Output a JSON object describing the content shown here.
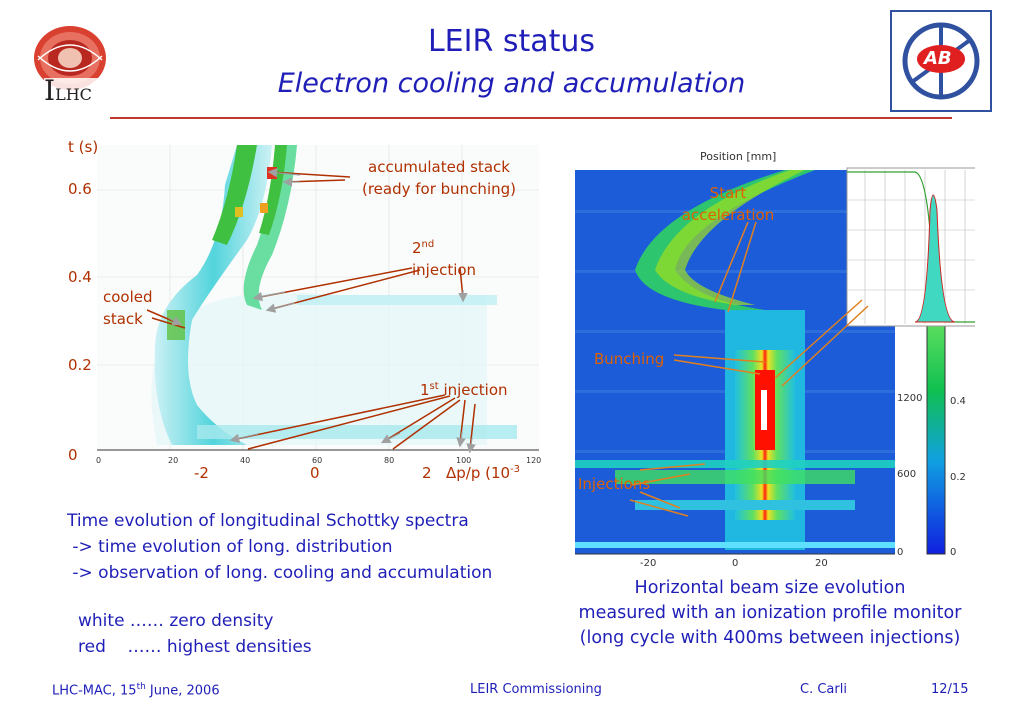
{
  "title": "LEIR status",
  "subtitle": "Electron cooling and accumulation",
  "left_plot": {
    "y_axis_label": "t (s)",
    "y_ticks": [
      "0.6",
      "0.4",
      "0.2",
      "0"
    ],
    "x_ticks": [
      "-2",
      "0",
      "2"
    ],
    "x_axis_label": "Δp/p (10",
    "x_axis_exp": "-3",
    "small_x_ticks": [
      "0",
      "20",
      "40",
      "60",
      "80",
      "100",
      "120"
    ],
    "annotations": {
      "accumulated_stack_line1": "accumulated stack",
      "accumulated_stack_line2": "(ready for bunching)",
      "second_injection_num": "2",
      "second_injection_sup": "nd",
      "second_injection_word": "injection",
      "cooled_stack_line1": "cooled",
      "cooled_stack_line2": "stack",
      "first_injection_num": "1",
      "first_injection_sup": "st",
      "first_injection_word": " injection"
    }
  },
  "right_plot": {
    "header": "Position [mm]",
    "x_ticks": [
      "-20",
      "0",
      "20"
    ],
    "y_ticks": [
      "1200",
      "600",
      "0"
    ],
    "colorbar_ticks": [
      "0.4",
      "0.2",
      "0"
    ],
    "annotations": {
      "start_accel_line1": "Start",
      "start_accel_line2": "acceleration",
      "bunching": "Bunching",
      "injections": "Injections"
    }
  },
  "left_text": {
    "line1": "Time evolution of longitudinal Schottky spectra",
    "line2": " -> time evolution of long. distribution",
    "line3": " -> observation of long. cooling and accumulation",
    "white_line": "white …… zero density",
    "red_line": "red    …… highest densities"
  },
  "caption": {
    "line1": "Horizontal beam size evolution",
    "line2": "measured with an ionization profile monitor",
    "line3": "(long cycle with 400ms between injections)"
  },
  "footer": {
    "left": "LHC-MAC, 15",
    "left_sup": "th",
    "left_rest": " June, 2006",
    "center": "LEIR Commissioning",
    "author": "C. Carli",
    "page": "12/15"
  },
  "logos": {
    "left_text": "LHC",
    "left_initial": "I",
    "right_text": "AB"
  }
}
